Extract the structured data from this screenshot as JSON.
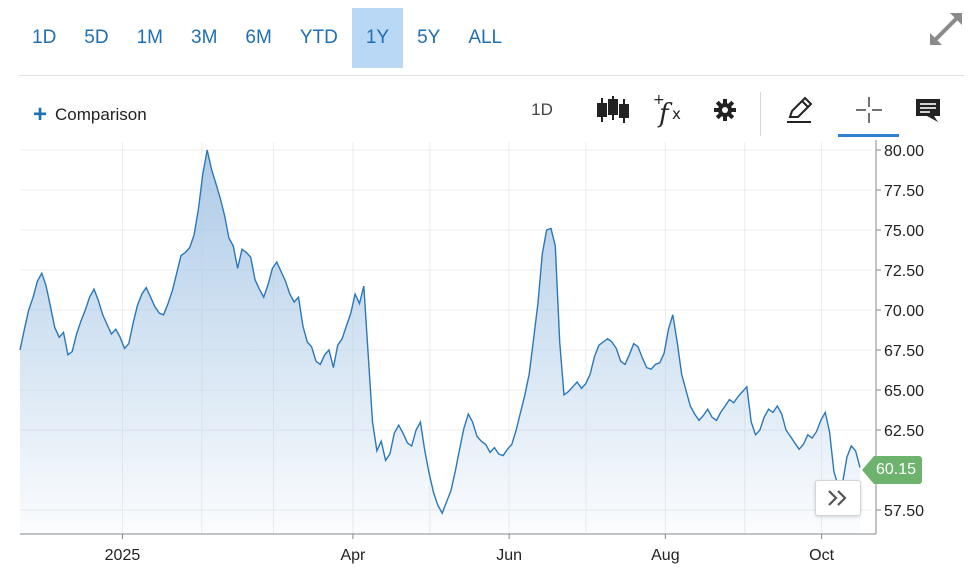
{
  "ranges": [
    "1D",
    "5D",
    "1M",
    "3M",
    "6M",
    "YTD",
    "1Y",
    "5Y",
    "ALL"
  ],
  "active_range": "1Y",
  "toolbar": {
    "comparison_label": "Comparison",
    "interval_label": "1D",
    "icons": [
      "candlestick-icon",
      "fx-indicator-icon",
      "gear-icon",
      "pencil-draw-icon",
      "crosshair-icon",
      "comment-icon"
    ]
  },
  "colors": {
    "accent": "#1f6fb5",
    "line": "#2b77b8",
    "fill_top": "#a9c8e6",
    "last_price_bg": "#6db36d",
    "active_range_bg": "#b9d8f5"
  },
  "last_price": "60.15",
  "chart_data": {
    "type": "area",
    "ylim": [
      56.0,
      80.5
    ],
    "yticks": [
      "80.00",
      "77.50",
      "75.00",
      "72.50",
      "70.00",
      "67.50",
      "65.00",
      "62.50",
      "57.50"
    ],
    "xticks": [
      "2025",
      "Apr",
      "Jun",
      "Aug",
      "Oct"
    ],
    "x_start": "2024-11-22",
    "x_end": "2025-10-16",
    "values": [
      67.5,
      68.8,
      70.0,
      70.8,
      71.8,
      72.3,
      71.5,
      70.2,
      68.9,
      68.3,
      68.6,
      67.2,
      67.4,
      68.5,
      69.3,
      70.0,
      70.8,
      71.3,
      70.6,
      69.7,
      69.1,
      68.5,
      68.8,
      68.3,
      67.6,
      67.9,
      69.2,
      70.3,
      71.0,
      71.4,
      70.8,
      70.2,
      69.8,
      69.7,
      70.4,
      71.2,
      72.3,
      73.4,
      73.6,
      73.9,
      74.7,
      76.3,
      78.5,
      80.0,
      78.8,
      77.9,
      77.0,
      75.9,
      74.5,
      74.0,
      72.6,
      73.8,
      73.6,
      73.3,
      71.9,
      71.3,
      70.8,
      71.6,
      72.6,
      73.0,
      72.4,
      71.8,
      71.0,
      70.5,
      70.8,
      69.0,
      68.0,
      67.7,
      66.8,
      66.6,
      67.2,
      67.5,
      66.4,
      67.8,
      68.2,
      69.0,
      69.8,
      71.0,
      70.4,
      71.5,
      67.2,
      63.0,
      61.2,
      61.8,
      60.6,
      61.0,
      62.3,
      62.8,
      62.3,
      61.7,
      61.5,
      62.5,
      63.0,
      61.2,
      59.8,
      58.6,
      57.8,
      57.3,
      58.0,
      58.7,
      59.9,
      61.3,
      62.6,
      63.5,
      63.0,
      62.1,
      61.8,
      61.6,
      61.1,
      61.4,
      61.0,
      60.9,
      61.3,
      61.6,
      62.5,
      63.6,
      64.7,
      66.0,
      68.2,
      70.4,
      73.5,
      75.0,
      75.1,
      74.0,
      68.0,
      64.7,
      64.9,
      65.2,
      65.5,
      65.1,
      65.4,
      66.0,
      67.1,
      67.8,
      68.0,
      68.2,
      68.0,
      67.6,
      66.8,
      66.6,
      67.2,
      67.9,
      67.7,
      67.0,
      66.4,
      66.3,
      66.6,
      66.7,
      67.3,
      68.8,
      69.7,
      68.0,
      66.0,
      65.0,
      64.0,
      63.5,
      63.1,
      63.4,
      63.8,
      63.3,
      63.1,
      63.6,
      64.0,
      64.4,
      64.2,
      64.6,
      64.9,
      65.2,
      63.0,
      62.2,
      62.5,
      63.3,
      63.8,
      63.6,
      64.0,
      63.5,
      62.5,
      62.1,
      61.7,
      61.3,
      61.6,
      62.2,
      62.0,
      62.4,
      63.1,
      63.6,
      62.4,
      59.9,
      59.0,
      59.2,
      60.8,
      61.5,
      61.2,
      60.15
    ]
  }
}
